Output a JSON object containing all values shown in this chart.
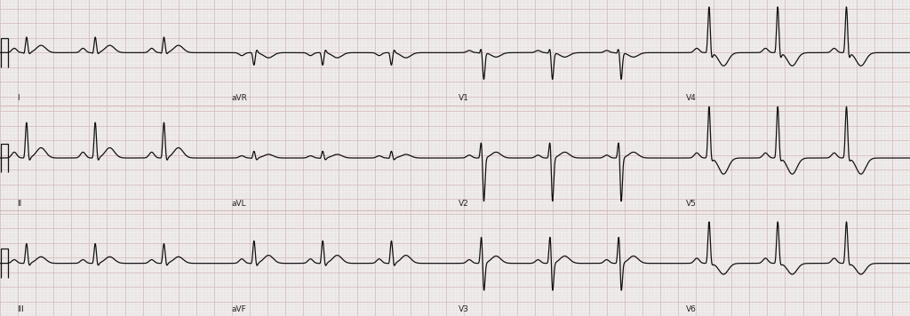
{
  "background_color": "#f0eeee",
  "grid_major_color": "#d4b8b8",
  "grid_minor_color": "#e4d4d4",
  "line_color": "#111111",
  "line_width": 0.9,
  "fig_width": 10.24,
  "fig_height": 3.56,
  "label_fontsize": 6.5,
  "lead_layout": [
    [
      "I",
      "aVR",
      "V1",
      "V4"
    ],
    [
      "II",
      "aVL",
      "V2",
      "V5"
    ],
    [
      "III",
      "aVF",
      "V3",
      "V6"
    ]
  ],
  "beat_params": {
    "I": {
      "p": 0.06,
      "q": -0.04,
      "r": 0.22,
      "s": -0.04,
      "t": 0.1,
      "t_inv": false
    },
    "aVR": {
      "p": -0.04,
      "q": 0.02,
      "r": -0.18,
      "s": 0.06,
      "t": -0.07,
      "t_inv": true
    },
    "V1": {
      "p": 0.03,
      "q": -0.02,
      "r": 0.08,
      "s": -0.38,
      "t": -0.06,
      "t_inv": true
    },
    "V4": {
      "p": 0.06,
      "q": -0.06,
      "r": 0.65,
      "s": -0.12,
      "t": -0.18,
      "t_inv": true
    },
    "II": {
      "p": 0.08,
      "q": -0.05,
      "r": 0.5,
      "s": -0.08,
      "t": 0.14,
      "t_inv": false
    },
    "aVL": {
      "p": 0.03,
      "q": -0.02,
      "r": 0.1,
      "s": -0.04,
      "t": 0.05,
      "t_inv": false
    },
    "V2": {
      "p": 0.04,
      "q": -0.03,
      "r": 0.28,
      "s": -0.65,
      "t": 0.08,
      "t_inv": false
    },
    "V5": {
      "p": 0.07,
      "q": -0.06,
      "r": 0.72,
      "s": -0.08,
      "t": -0.22,
      "t_inv": true
    },
    "III": {
      "p": 0.05,
      "q": -0.03,
      "r": 0.28,
      "s": -0.06,
      "t": 0.09,
      "t_inv": false
    },
    "aVF": {
      "p": 0.06,
      "q": -0.04,
      "r": 0.32,
      "s": -0.07,
      "t": 0.11,
      "t_inv": false
    },
    "V3": {
      "p": 0.05,
      "q": -0.04,
      "r": 0.42,
      "s": -0.45,
      "t": 0.1,
      "t_inv": false
    },
    "V6": {
      "p": 0.07,
      "q": -0.05,
      "r": 0.58,
      "s": -0.05,
      "t": -0.15,
      "t_inv": true
    }
  }
}
